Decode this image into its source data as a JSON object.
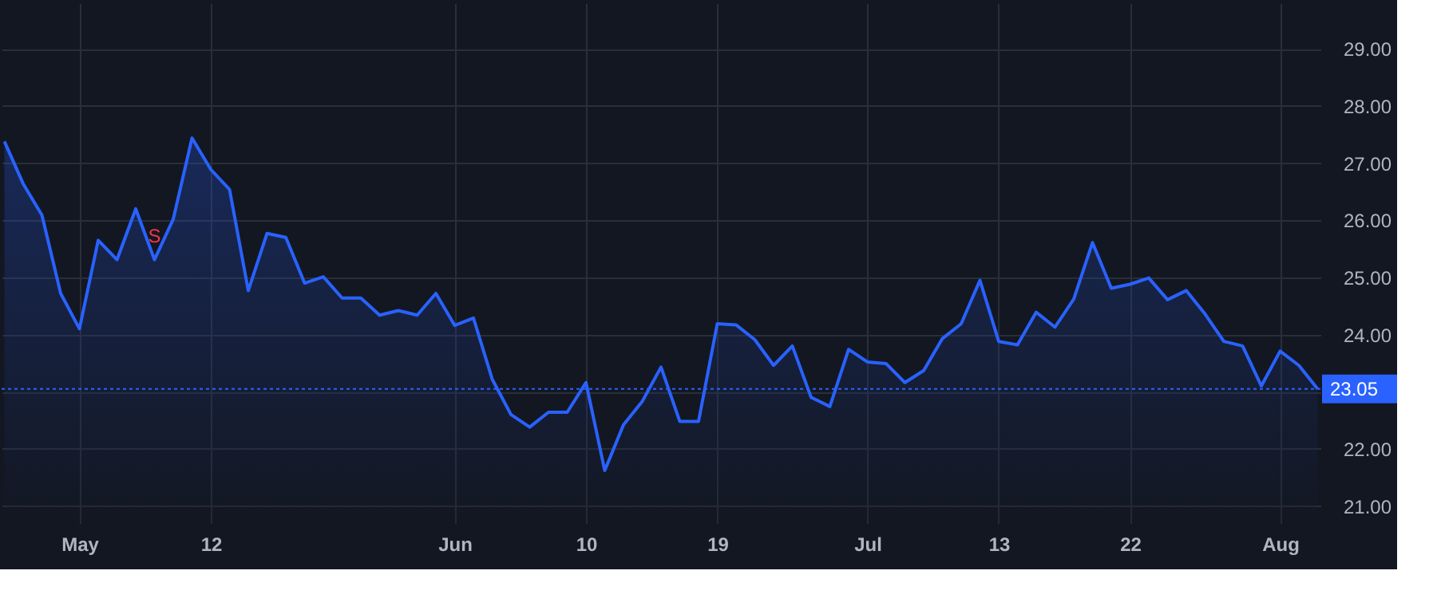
{
  "chart_data": {
    "type": "area",
    "categories": [
      null,
      null,
      null,
      null,
      "May",
      null,
      null,
      null,
      null,
      null,
      null,
      "12",
      null,
      null,
      null,
      null,
      null,
      null,
      null,
      null,
      null,
      null,
      null,
      null,
      "Jun",
      null,
      null,
      null,
      null,
      null,
      null,
      "10",
      null,
      null,
      null,
      null,
      null,
      null,
      "19",
      null,
      null,
      null,
      null,
      null,
      null,
      null,
      "Jul",
      null,
      null,
      null,
      null,
      null,
      null,
      "13",
      null,
      null,
      null,
      null,
      null,
      null,
      "22",
      null,
      null,
      null,
      null,
      null,
      null,
      null,
      "Aug",
      null,
      null
    ],
    "series": [
      {
        "color": "#2962ff",
        "values": [
          27.38,
          26.64,
          26.09,
          24.72,
          24.1,
          25.65,
          25.31,
          26.2,
          25.31,
          26.02,
          27.44,
          26.89,
          26.54,
          24.77,
          25.77,
          25.7,
          24.9,
          25.01,
          24.64,
          24.64,
          24.34,
          24.42,
          24.34,
          24.72,
          24.16,
          24.29,
          23.22,
          22.6,
          22.38,
          22.64,
          22.64,
          23.16,
          21.62,
          22.42,
          22.83,
          23.43,
          22.48,
          22.48,
          24.19,
          24.17,
          23.91,
          23.46,
          23.8,
          22.9,
          22.74,
          23.74,
          23.52,
          23.49,
          23.16,
          23.37,
          23.93,
          24.19,
          24.95,
          23.88,
          23.82,
          24.39,
          24.13,
          24.62,
          25.61,
          24.81,
          24.88,
          24.99,
          24.61,
          24.77,
          24.36,
          23.88,
          23.8,
          23.1,
          23.71,
          23.46,
          23.05
        ]
      }
    ],
    "ylim": [
      20.7,
      29.8
    ],
    "yticks": [
      {
        "value": 21,
        "label": "21.00"
      },
      {
        "value": 22,
        "label": "22.00"
      },
      {
        "value": 23,
        "label": null
      },
      {
        "value": 24,
        "label": "24.00"
      },
      {
        "value": 25,
        "label": "25.00"
      },
      {
        "value": 26,
        "label": "26.00"
      },
      {
        "value": 27,
        "label": "27.00"
      },
      {
        "value": 28,
        "label": "28.00"
      },
      {
        "value": 29,
        "label": "29.00"
      }
    ],
    "ref_lines": [
      {
        "axis": "y",
        "value": 23.05,
        "label": "23.05",
        "color": "#2962ff",
        "line_style": "dotted"
      }
    ],
    "annotations": [
      {
        "text": "S",
        "y": 25.31
      }
    ],
    "grid": true,
    "marker": "none",
    "line_style": "solid"
  }
}
